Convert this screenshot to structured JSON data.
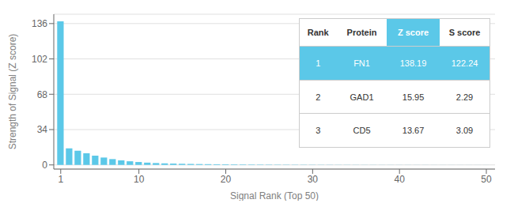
{
  "chart_data": {
    "type": "bar",
    "xlabel": "Signal Rank (Top 50)",
    "ylabel": "Strength of Signal (Z score)",
    "x": [
      1,
      2,
      3,
      4,
      5,
      6,
      7,
      8,
      9,
      10,
      11,
      12,
      13,
      14,
      15,
      16,
      17,
      18,
      19,
      20,
      21,
      22,
      23,
      24,
      25,
      26,
      27,
      28,
      29,
      30,
      31,
      32,
      33,
      34,
      35,
      36,
      37,
      38,
      39,
      40,
      41,
      42,
      43,
      44,
      45,
      46,
      47,
      48,
      49,
      50
    ],
    "values": [
      138.19,
      15.95,
      13.67,
      11.2,
      8.9,
      7.1,
      5.6,
      4.4,
      3.5,
      2.8,
      2.2,
      1.8,
      1.5,
      1.3,
      1.1,
      0.95,
      0.82,
      0.72,
      0.63,
      0.55,
      0.48,
      0.43,
      0.38,
      0.34,
      0.3,
      0.27,
      0.24,
      0.22,
      0.2,
      0.18,
      0.16,
      0.15,
      0.13,
      0.12,
      0.11,
      0.1,
      0.09,
      0.08,
      0.08,
      0.07,
      0.07,
      0.06,
      0.06,
      0.05,
      0.05,
      0.05,
      0.04,
      0.04,
      0.04,
      0.03
    ],
    "color": "#5bc8e8",
    "xlim": [
      0.2,
      51
    ],
    "xticks": [
      1,
      10,
      20,
      30,
      40,
      50
    ],
    "ylim": [
      -4,
      145
    ],
    "yticks": [
      0,
      34,
      68,
      102,
      136
    ],
    "grid": true,
    "table": {
      "columns": [
        "Rank",
        "Protein",
        "Z score",
        "S score"
      ],
      "rows": [
        [
          "1",
          "FN1",
          "138.19",
          "122.24"
        ],
        [
          "2",
          "GAD1",
          "15.95",
          "2.29"
        ],
        [
          "3",
          "CD5",
          "13.67",
          "3.09"
        ]
      ]
    }
  }
}
